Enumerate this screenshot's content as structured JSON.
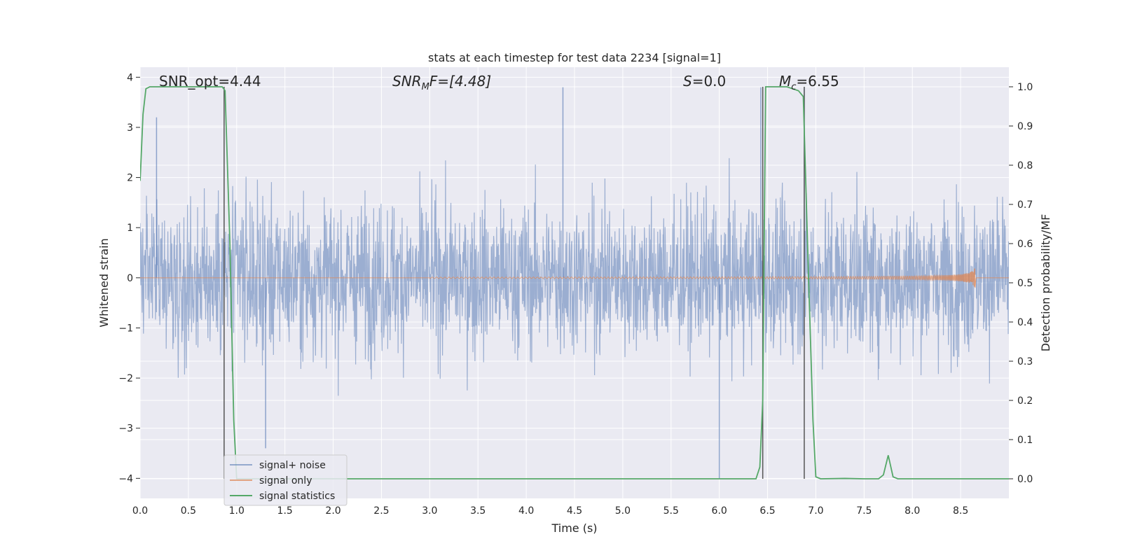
{
  "chart_data": {
    "type": "line",
    "title": "stats at each timestep for test data 2234 [signal=1]",
    "xlabel": "Time (s)",
    "ylabel": "Whitened strain",
    "y2label": "Detection probability/MF",
    "xlim": [
      0.0,
      9.0
    ],
    "ylim": [
      -4.4,
      4.2
    ],
    "y2lim": [
      -0.05,
      1.05
    ],
    "xticks": [
      "0.0",
      "0.5",
      "1.0",
      "1.5",
      "2.0",
      "2.5",
      "3.0",
      "3.5",
      "4.0",
      "4.5",
      "5.0",
      "5.5",
      "6.0",
      "6.5",
      "7.0",
      "7.5",
      "8.0",
      "8.5"
    ],
    "yticks": [
      "−4",
      "−3",
      "−2",
      "−1",
      "0",
      "1",
      "2",
      "3",
      "4"
    ],
    "y2ticks": [
      "0.0",
      "0.1",
      "0.2",
      "0.3",
      "0.4",
      "0.5",
      "0.6",
      "0.7",
      "0.8",
      "0.9",
      "1.0"
    ],
    "grid": true,
    "legend_position": "lower-left",
    "annotations": [
      {
        "id": "snr_opt",
        "text": "SNR_opt=4.44"
      },
      {
        "id": "snr_mf",
        "base": "SNR",
        "sub": "M",
        "rest": "F=[4.48]"
      },
      {
        "id": "s",
        "base": "S",
        "rest": "=0.0"
      },
      {
        "id": "mc",
        "base": "M",
        "sub": "c",
        "rest": "=6.55"
      }
    ],
    "vertical_markers_x": [
      0.87,
      6.45,
      6.88
    ],
    "series": [
      {
        "name": "signal+ noise",
        "color": "#4c72b0",
        "kind": "noise",
        "approx_range": [
          -4.0,
          3.8
        ],
        "notable_spikes": [
          {
            "x": 4.38,
            "y": 3.8
          },
          {
            "x": 6.0,
            "y": -4.0
          },
          {
            "x": 6.43,
            "y": 3.8
          },
          {
            "x": 6.88,
            "y": 3.8
          },
          {
            "x": 0.17,
            "y": 3.2
          },
          {
            "x": 1.3,
            "y": -3.4
          }
        ]
      },
      {
        "name": "signal only",
        "color": "#dd8452",
        "kind": "chirp",
        "start_x": 3.0,
        "end_x": 8.65,
        "peak_amplitude": 0.5
      },
      {
        "name": "signal statistics",
        "color": "#55a868",
        "axis": "right",
        "points": [
          [
            0.0,
            0.76
          ],
          [
            0.03,
            0.93
          ],
          [
            0.06,
            0.995
          ],
          [
            0.1,
            1.0
          ],
          [
            0.5,
            1.0
          ],
          [
            0.85,
            1.0
          ],
          [
            0.88,
            0.99
          ],
          [
            0.93,
            0.6
          ],
          [
            0.97,
            0.15
          ],
          [
            1.0,
            0.0
          ],
          [
            6.38,
            0.0
          ],
          [
            6.42,
            0.03
          ],
          [
            6.45,
            0.2
          ],
          [
            6.48,
            1.0
          ],
          [
            6.7,
            1.0
          ],
          [
            6.82,
            0.99
          ],
          [
            6.87,
            0.975
          ],
          [
            6.92,
            0.55
          ],
          [
            6.97,
            0.15
          ],
          [
            7.0,
            0.005
          ],
          [
            7.05,
            0.0
          ],
          [
            7.3,
            0.001
          ],
          [
            7.5,
            0.0
          ],
          [
            7.65,
            0.0
          ],
          [
            7.7,
            0.01
          ],
          [
            7.75,
            0.06
          ],
          [
            7.8,
            0.005
          ],
          [
            7.85,
            0.0
          ],
          [
            9.0,
            0.0
          ]
        ]
      }
    ]
  }
}
